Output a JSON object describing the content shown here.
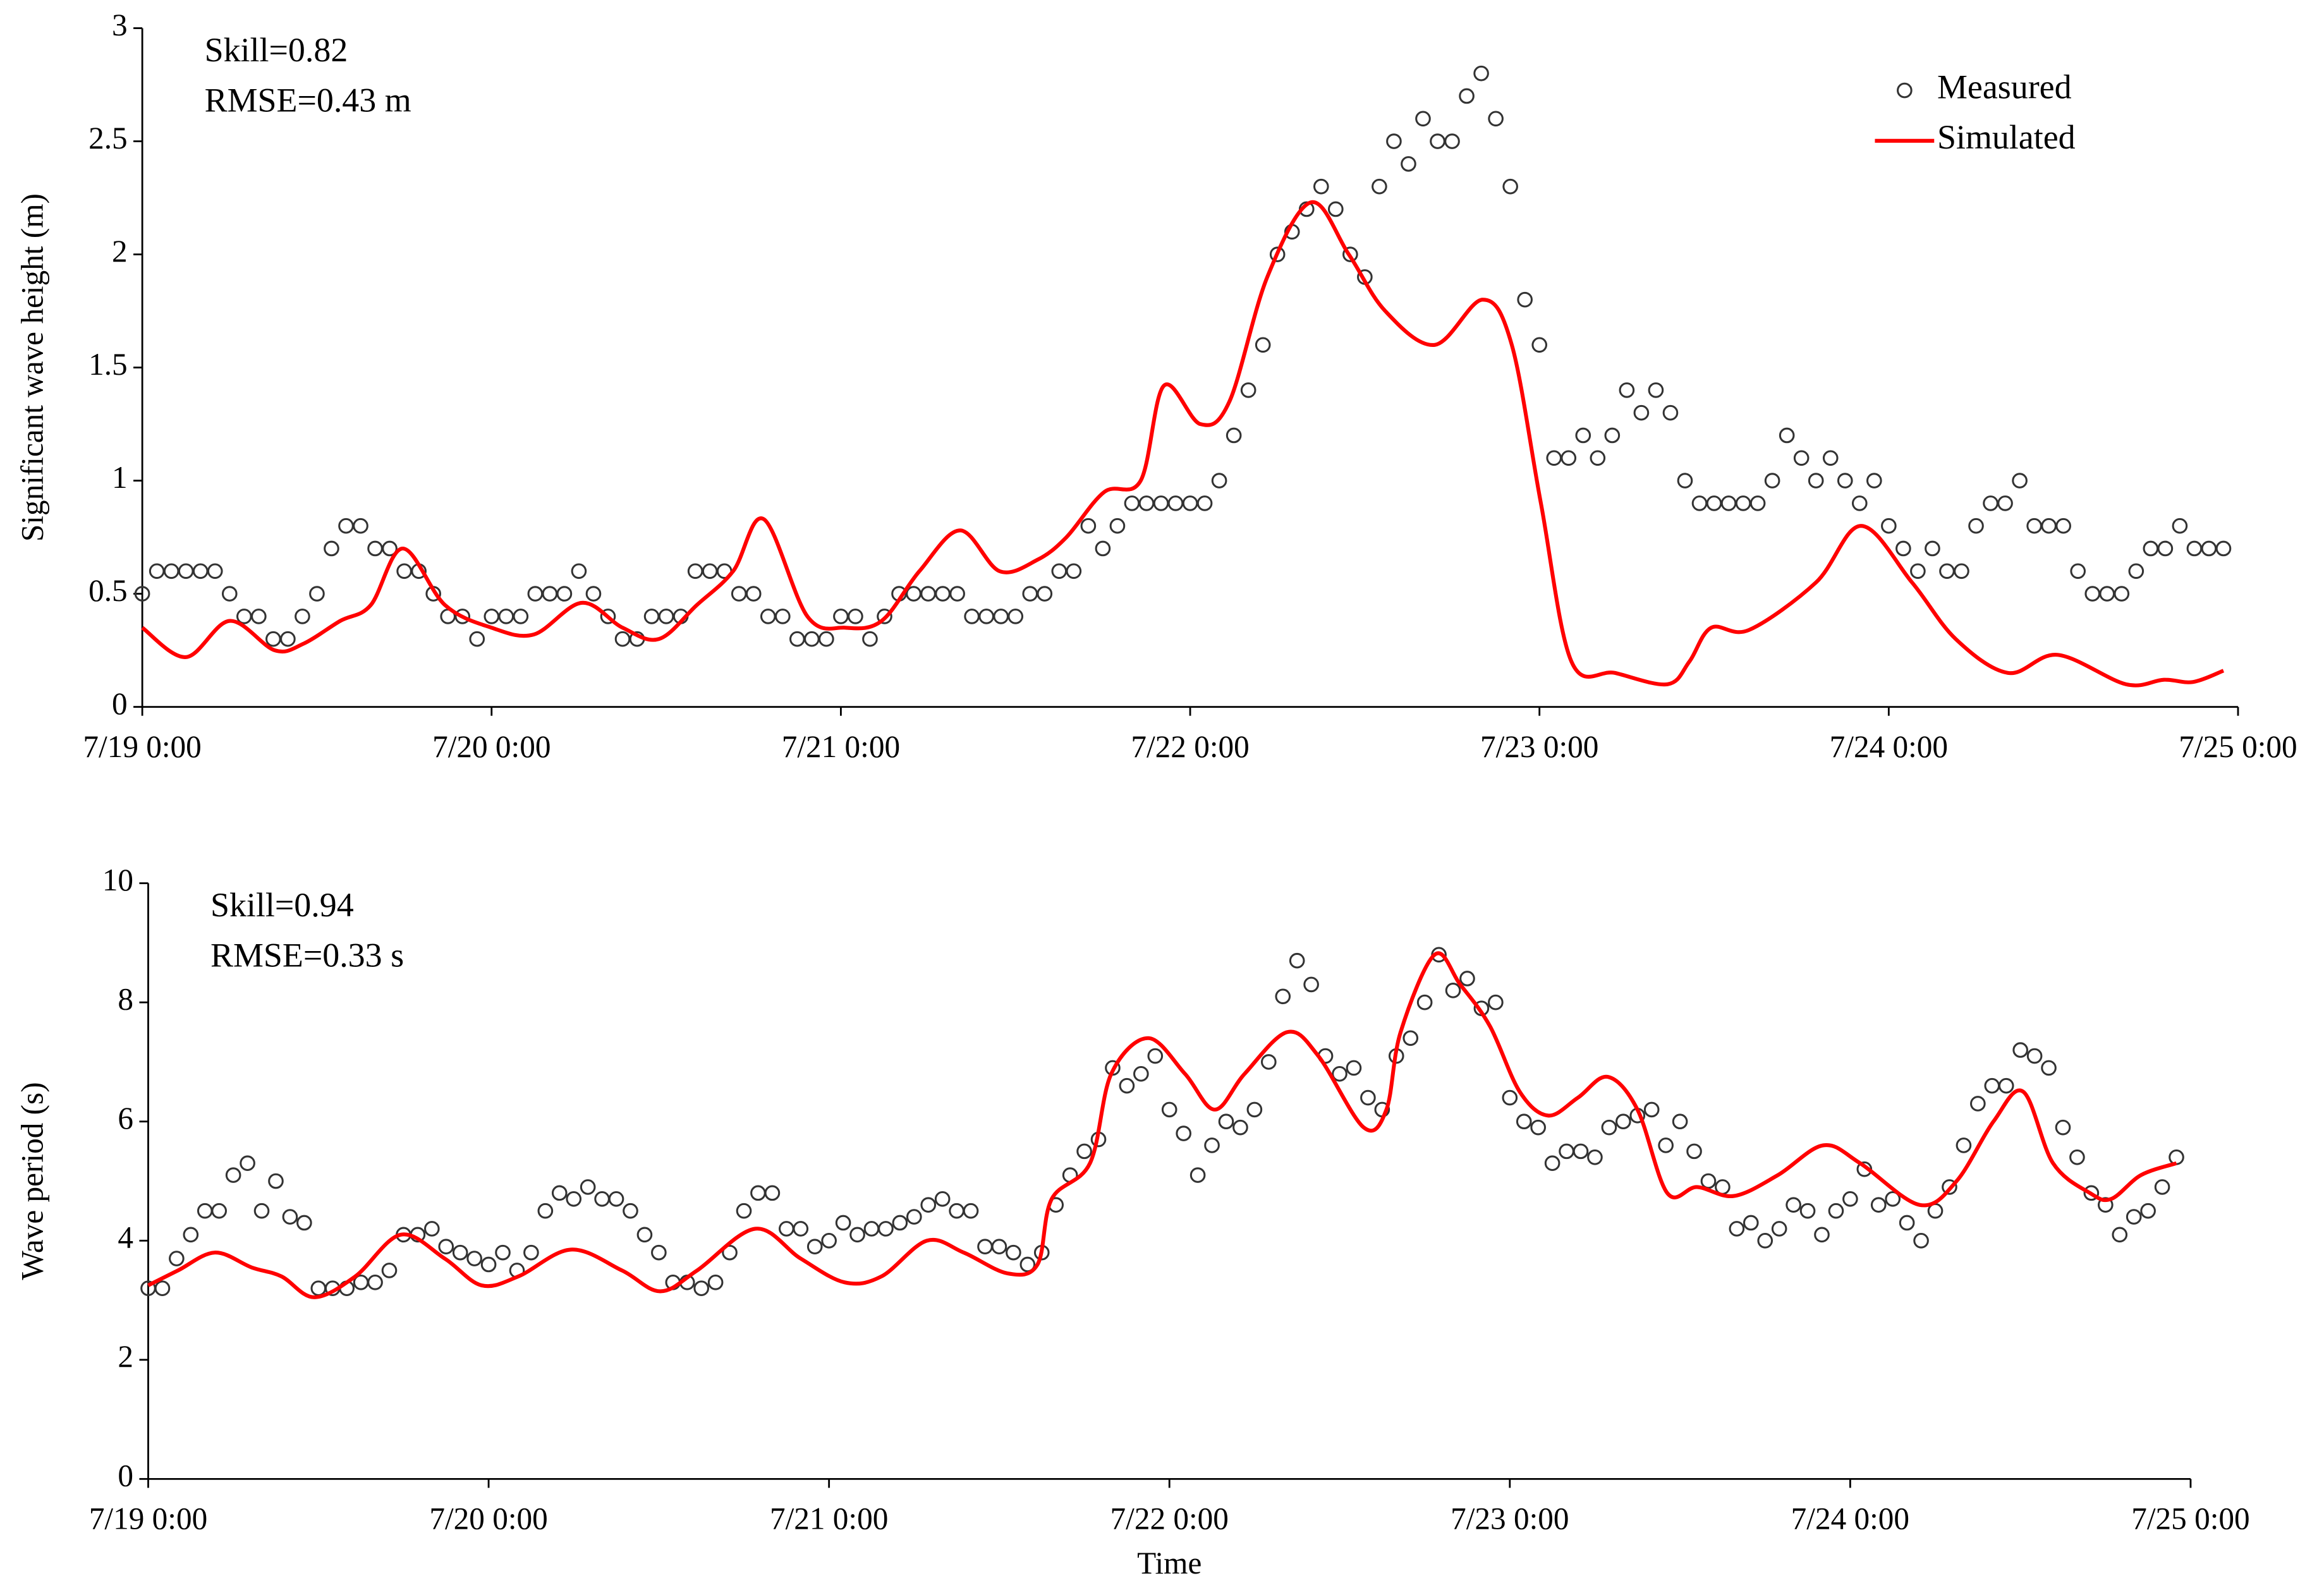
{
  "chart_data": [
    {
      "type": "line",
      "annotations": [
        "Skill=0.82",
        "RMSE=0.43 m"
      ],
      "ylabel": "Significant  wave height (m)",
      "xlim": [
        0,
        144
      ],
      "xticks": [
        {
          "value": 0,
          "label": "7/19 0:00"
        },
        {
          "value": 24,
          "label": "7/20 0:00"
        },
        {
          "value": 48,
          "label": "7/21 0:00"
        },
        {
          "value": 72,
          "label": "7/22 0:00"
        },
        {
          "value": 96,
          "label": "7/23 0:00"
        },
        {
          "value": 120,
          "label": "7/24 0:00"
        },
        {
          "value": 144,
          "label": "7/25 0:00"
        }
      ],
      "ylim": [
        0,
        3
      ],
      "yticks": [
        0,
        0.5,
        1,
        1.5,
        2,
        2.5,
        3
      ],
      "legend": "upper right",
      "series": [
        {
          "name": "Measured",
          "style": "markers",
          "color": "#333333",
          "x": [
            0,
            1,
            2,
            3,
            4,
            5,
            6,
            7,
            8,
            9,
            10,
            11,
            12,
            13,
            14,
            15,
            16,
            17,
            18,
            19,
            20,
            21,
            22,
            23,
            24,
            25,
            26,
            27,
            28,
            29,
            30,
            31,
            32,
            33,
            34,
            35,
            36,
            37,
            38,
            39,
            40,
            41,
            42,
            43,
            44,
            45,
            46,
            47,
            48,
            49,
            50,
            51,
            52,
            53,
            54,
            55,
            56,
            57,
            58,
            59,
            60,
            61,
            62,
            63,
            64,
            65,
            66,
            67,
            68,
            69,
            70,
            71,
            72,
            73,
            74,
            75,
            76,
            77,
            78,
            79,
            80,
            81,
            82,
            83,
            84,
            85,
            86,
            87,
            88,
            89,
            90,
            91,
            92,
            93,
            94,
            95,
            96,
            97,
            98,
            99,
            100,
            101,
            102,
            103,
            104,
            105,
            106,
            107,
            108,
            109,
            110,
            111,
            112,
            113,
            114,
            115,
            116,
            117,
            118,
            119,
            120,
            121,
            122,
            123,
            124,
            125,
            126,
            127,
            128,
            129,
            130,
            131,
            132,
            133,
            134,
            135,
            136,
            137,
            138,
            139,
            140,
            141,
            142,
            143
          ],
          "values": [
            0.5,
            0.6,
            0.6,
            0.6,
            0.6,
            0.6,
            0.5,
            0.4,
            0.4,
            0.3,
            0.3,
            0.4,
            0.5,
            0.7,
            0.8,
            0.8,
            0.7,
            0.7,
            0.6,
            0.6,
            0.5,
            0.4,
            0.4,
            0.3,
            0.4,
            0.4,
            0.4,
            0.5,
            0.5,
            0.5,
            0.6,
            0.5,
            0.4,
            0.3,
            0.3,
            0.4,
            0.4,
            0.4,
            0.6,
            0.6,
            0.6,
            0.5,
            0.5,
            0.4,
            0.4,
            0.3,
            0.3,
            0.3,
            0.4,
            0.4,
            0.3,
            0.4,
            0.5,
            0.5,
            0.5,
            0.5,
            0.5,
            0.4,
            0.4,
            0.4,
            0.4,
            0.5,
            0.5,
            0.6,
            0.6,
            0.8,
            0.7,
            0.8,
            0.9,
            0.9,
            0.9,
            0.9,
            0.9,
            0.9,
            1.0,
            1.2,
            1.4,
            1.6,
            2.0,
            2.1,
            2.2,
            2.3,
            2.2,
            2.0,
            1.9,
            2.3,
            2.5,
            2.4,
            2.6,
            2.5,
            2.5,
            2.7,
            2.8,
            2.6,
            2.3,
            1.8,
            1.6,
            1.1,
            1.1,
            1.2,
            1.1,
            1.2,
            1.4,
            1.3,
            1.4,
            1.3,
            1.0,
            0.9,
            0.9,
            0.9,
            0.9,
            0.9,
            1.0,
            1.2,
            1.1,
            1.0,
            1.1,
            1.0,
            0.9,
            1.0,
            0.8,
            0.7,
            0.6,
            0.7,
            0.6,
            0.6,
            0.8,
            0.9,
            0.9,
            1.0,
            0.8,
            0.8,
            0.8,
            0.6,
            0.5,
            0.5,
            0.5,
            0.6,
            0.7,
            0.7,
            0.8,
            0.7,
            0.7,
            0.7
          ]
        },
        {
          "name": "Simulated",
          "style": "line",
          "color": "#ff0000",
          "x": [
            0,
            3.0,
            6.0,
            9.1,
            11.1,
            13.6,
            15.7,
            17.9,
            20.8,
            24.0,
            26.9,
            30.2,
            33.0,
            35.5,
            38.1,
            40.6,
            42.7,
            45.7,
            48.3,
            50.8,
            53.4,
            56.2,
            58.9,
            61.5,
            63.5,
            66.1,
            68.6,
            70.2,
            72.7,
            74.7,
            77.3,
            80.3,
            82.9,
            85.4,
            88.8,
            92.1,
            94.1,
            96.1,
            98.2,
            101.2,
            104.8,
            106.3,
            107.8,
            110.4,
            115.0,
            118.1,
            121.6,
            124.6,
            128.2,
            131.6,
            136.3,
            138.9,
            140.9,
            143.0
          ],
          "values": [
            0.35,
            0.22,
            0.38,
            0.25,
            0.28,
            0.38,
            0.45,
            0.7,
            0.45,
            0.35,
            0.32,
            0.46,
            0.35,
            0.3,
            0.45,
            0.6,
            0.83,
            0.4,
            0.35,
            0.38,
            0.6,
            0.78,
            0.6,
            0.65,
            0.75,
            0.95,
            1.0,
            1.42,
            1.25,
            1.35,
            1.9,
            2.23,
            2.0,
            1.75,
            1.6,
            1.8,
            1.6,
            0.9,
            0.2,
            0.15,
            0.1,
            0.2,
            0.35,
            0.34,
            0.55,
            0.8,
            0.55,
            0.3,
            0.15,
            0.23,
            0.1,
            0.12,
            0.11,
            0.16
          ]
        }
      ]
    },
    {
      "type": "line",
      "annotations": [
        "Skill=0.94",
        "RMSE=0.33 s"
      ],
      "ylabel": "Wave period (s)",
      "xlabel": "Time",
      "xlim": [
        0,
        144
      ],
      "xticks": [
        {
          "value": 0,
          "label": "7/19 0:00"
        },
        {
          "value": 24,
          "label": "7/20 0:00"
        },
        {
          "value": 48,
          "label": "7/21 0:00"
        },
        {
          "value": 72,
          "label": "7/22 0:00"
        },
        {
          "value": 96,
          "label": "7/23 0:00"
        },
        {
          "value": 120,
          "label": "7/24 0:00"
        },
        {
          "value": 144,
          "label": "7/25 0:00"
        }
      ],
      "ylim": [
        0,
        10
      ],
      "yticks": [
        0,
        2,
        4,
        6,
        8,
        10
      ],
      "series": [
        {
          "style": "markers",
          "color": "#333333",
          "x": [
            0,
            1,
            2,
            3,
            4,
            5,
            6,
            7,
            8,
            9,
            10,
            11,
            12,
            13,
            14,
            15,
            16,
            17,
            18,
            19,
            20,
            21,
            22,
            23,
            24,
            25,
            26,
            27,
            28,
            29,
            30,
            31,
            32,
            33,
            34,
            35,
            36,
            37,
            38,
            39,
            40,
            41,
            42,
            43,
            44,
            45,
            46,
            47,
            48,
            49,
            50,
            51,
            52,
            53,
            54,
            55,
            56,
            57,
            58,
            59,
            60,
            61,
            62,
            63,
            64,
            65,
            66,
            67,
            68,
            69,
            70,
            71,
            72,
            73,
            74,
            75,
            76,
            77,
            78,
            79,
            80,
            81,
            82,
            83,
            84,
            85,
            86,
            87,
            88,
            89,
            90,
            91,
            92,
            93,
            94,
            95,
            96,
            97,
            98,
            99,
            100,
            101,
            102,
            103,
            104,
            105,
            106,
            107,
            108,
            109,
            110,
            111,
            112,
            113,
            114,
            115,
            116,
            117,
            118,
            119,
            120,
            121,
            122,
            123,
            124,
            125,
            126,
            127,
            128,
            129,
            130,
            131,
            132,
            133,
            134,
            135,
            136,
            137,
            138,
            139,
            140,
            141,
            142,
            143
          ],
          "values": [
            3.2,
            3.2,
            3.7,
            4.1,
            4.5,
            4.5,
            5.1,
            5.3,
            4.5,
            5.0,
            4.4,
            4.3,
            3.2,
            3.2,
            3.2,
            3.3,
            3.3,
            3.5,
            4.1,
            4.1,
            4.2,
            3.9,
            3.8,
            3.7,
            3.6,
            3.8,
            3.5,
            3.8,
            4.5,
            4.8,
            4.7,
            4.9,
            4.7,
            4.7,
            4.5,
            4.1,
            3.8,
            3.3,
            3.3,
            3.2,
            3.3,
            3.8,
            4.5,
            4.8,
            4.8,
            4.2,
            4.2,
            3.9,
            4.0,
            4.3,
            4.1,
            4.2,
            4.2,
            4.3,
            4.4,
            4.6,
            4.7,
            4.5,
            4.5,
            3.9,
            3.9,
            3.8,
            3.6,
            3.8,
            4.6,
            5.1,
            5.5,
            5.7,
            6.9,
            6.6,
            6.8,
            7.1,
            6.2,
            5.8,
            5.1,
            5.6,
            6.0,
            5.9,
            6.2,
            7.0,
            8.1,
            8.7,
            8.3,
            7.1,
            6.8,
            6.9,
            6.4,
            6.2,
            7.1,
            7.4,
            8.0,
            8.8,
            8.2,
            8.4,
            7.9,
            8.0,
            6.4,
            6.0,
            5.9,
            5.3,
            5.5,
            5.5,
            5.4,
            5.9,
            6.0,
            6.1,
            6.2,
            5.6,
            6.0,
            5.5,
            5.0,
            4.9,
            4.2,
            4.3,
            4.0,
            4.2,
            4.6,
            4.5,
            4.1,
            4.5,
            4.7,
            5.2,
            4.6,
            4.7,
            4.3,
            4.0,
            4.5,
            4.9,
            5.6,
            6.3,
            6.6,
            6.6,
            7.2,
            7.1,
            6.9,
            5.9,
            5.4,
            4.8,
            4.6,
            4.1,
            4.4,
            4.5,
            4.9,
            5.4
          ]
        },
        {
          "style": "line",
          "color": "#ff0000",
          "x": [
            0,
            2.1,
            4.7,
            7.3,
            9.4,
            11.7,
            14.6,
            17.8,
            20.9,
            23.5,
            26.1,
            29.8,
            33.4,
            36.1,
            38.7,
            42.8,
            46.0,
            49.1,
            51.7,
            54.9,
            57.5,
            60.6,
            62.7,
            63.7,
            66.4,
            67.9,
            70.5,
            73.1,
            75.2,
            77.3,
            80.3,
            82.5,
            85.7,
            87.3,
            88.3,
            90.7,
            92.5,
            94.6,
            96.7,
            98.7,
            100.8,
            102.9,
            105.0,
            107.1,
            109.2,
            111.8,
            114.9,
            118.1,
            120.7,
            124.9,
            127.5,
            130.1,
            132.2,
            134.3,
            136.9,
            138.4,
            140.5,
            143.0
          ],
          "values": [
            3.25,
            3.5,
            3.8,
            3.55,
            3.4,
            3.05,
            3.4,
            4.1,
            3.7,
            3.25,
            3.4,
            3.85,
            3.5,
            3.15,
            3.5,
            4.2,
            3.7,
            3.3,
            3.4,
            4.0,
            3.8,
            3.45,
            3.6,
            4.7,
            5.3,
            6.8,
            7.4,
            6.8,
            6.2,
            6.8,
            7.5,
            7.1,
            5.9,
            6.2,
            7.5,
            8.8,
            8.3,
            7.6,
            6.5,
            6.1,
            6.4,
            6.75,
            6.2,
            4.8,
            4.9,
            4.75,
            5.1,
            5.6,
            5.3,
            4.6,
            5.0,
            6.0,
            6.5,
            5.3,
            4.8,
            4.7,
            5.1,
            5.3
          ]
        }
      ]
    }
  ]
}
